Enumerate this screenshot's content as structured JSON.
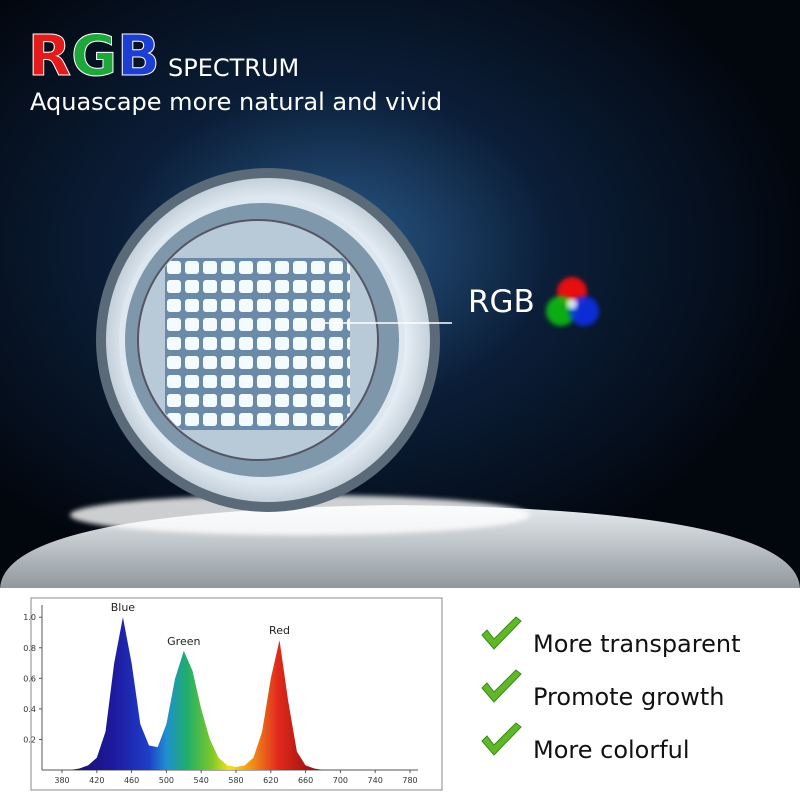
{
  "header": {
    "title_r": "R",
    "title_g": "G",
    "title_b": "B",
    "title_rest": "SPECTRUM",
    "subtitle": "Aquascape more natural and vivid"
  },
  "callout": "RGB",
  "features": [
    "More transparent",
    "Promote growth",
    "More colorful"
  ],
  "chart_data": {
    "type": "area",
    "x": [
      380,
      390,
      400,
      410,
      420,
      430,
      440,
      450,
      460,
      470,
      480,
      490,
      500,
      510,
      520,
      530,
      540,
      550,
      560,
      570,
      580,
      590,
      600,
      610,
      620,
      630,
      640,
      650,
      660,
      670,
      680
    ],
    "values": [
      0,
      0,
      0.01,
      0.03,
      0.08,
      0.25,
      0.7,
      1.0,
      0.7,
      0.3,
      0.16,
      0.15,
      0.3,
      0.6,
      0.78,
      0.65,
      0.4,
      0.2,
      0.08,
      0.03,
      0.02,
      0.03,
      0.08,
      0.25,
      0.6,
      0.85,
      0.45,
      0.12,
      0.03,
      0.01,
      0
    ],
    "xlim": [
      380,
      780
    ],
    "xticks": [
      380,
      420,
      460,
      500,
      540,
      580,
      620,
      660,
      700,
      740,
      780
    ],
    "ylim": [
      0,
      1.08
    ],
    "yticks": [
      0.2,
      0.4,
      0.6,
      0.8,
      {
        "value": 1,
        "label": "1.0"
      }
    ],
    "annotations": [
      {
        "text": "Blue",
        "x": 450,
        "y": 1.0
      },
      {
        "text": "Green",
        "x": 520,
        "y": 0.78
      },
      {
        "text": "Red",
        "x": 630,
        "y": 0.85
      }
    ]
  }
}
